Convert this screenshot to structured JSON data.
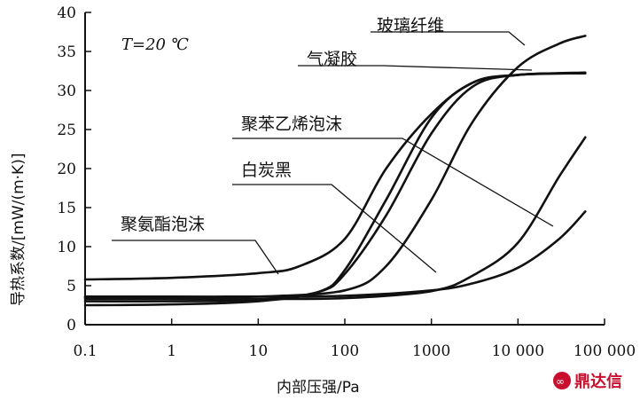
{
  "chart_data": {
    "type": "line",
    "xlabel": "内部压强/Pa",
    "ylabel": "导热系数/[mW/(m·K)]",
    "x_scale": "log",
    "xlim": [
      0.1,
      100000
    ],
    "ylim": [
      0,
      40
    ],
    "x_ticks": [
      0.1,
      1,
      10,
      100,
      1000,
      10000,
      100000
    ],
    "x_tick_labels": [
      "0.1",
      "1",
      "10",
      "100",
      "1000",
      "10 000",
      "100 000"
    ],
    "y_ticks": [
      0,
      5,
      10,
      15,
      20,
      25,
      30,
      35,
      40
    ],
    "y_tick_labels": [
      "0",
      "5",
      "10",
      "15",
      "20",
      "25",
      "30",
      "35",
      "40"
    ],
    "annotation": "T=20 ℃",
    "grid": false,
    "series": [
      {
        "name": "玻璃纤维",
        "x": [
          0.1,
          1,
          10,
          100,
          300,
          1000,
          3000,
          10000,
          30000,
          60000
        ],
        "y": [
          3.5,
          3.5,
          3.6,
          4.4,
          7.5,
          16,
          26,
          33,
          36,
          37
        ]
      },
      {
        "name": "气凝胶",
        "x": [
          0.1,
          1,
          10,
          50,
          100,
          300,
          1000,
          3000,
          10000,
          60000
        ],
        "y": [
          2.5,
          2.6,
          3.0,
          4.2,
          7.0,
          16,
          26.5,
          31,
          32,
          32.2
        ]
      },
      {
        "name": "聚苯乙烯泡沫",
        "x": [
          0.1,
          1,
          10,
          50,
          100,
          300,
          1000,
          3000,
          10000,
          60000
        ],
        "y": [
          3.0,
          3.0,
          3.2,
          4.2,
          6.5,
          14,
          24.5,
          30.5,
          32,
          32.2
        ]
      },
      {
        "name": "白炭黑",
        "x": [
          0.1,
          1,
          10,
          100,
          1000,
          3000,
          10000,
          30000,
          60000
        ],
        "y": [
          3.3,
          3.3,
          3.3,
          3.4,
          4.3,
          6.3,
          10.5,
          19,
          24
        ]
      },
      {
        "name": "聚氨酯泡沫",
        "x": [
          0.1,
          1,
          10,
          30,
          100,
          300,
          1000,
          3000,
          10000,
          60000
        ],
        "y": [
          5.8,
          6.0,
          6.6,
          7.5,
          11,
          20,
          27,
          31,
          32,
          32.3
        ]
      },
      {
        "name": "",
        "x": [
          0.1,
          1,
          10,
          100,
          1000,
          3000,
          10000,
          30000,
          60000
        ],
        "y": [
          3.6,
          3.6,
          3.6,
          3.7,
          4.4,
          5.3,
          7.3,
          11,
          14.5
        ]
      }
    ],
    "labels": [
      {
        "text": "玻璃纤维",
        "points_to": "玻璃纤维"
      },
      {
        "text": "气凝胶",
        "points_to": "气凝胶"
      },
      {
        "text": "聚苯乙烯泡沫",
        "points_to": "聚苯乙烯泡沫"
      },
      {
        "text": "白炭黑",
        "points_to": "白炭黑"
      },
      {
        "text": "聚氨酯泡沫",
        "points_to": "聚氨酯泡沫"
      }
    ],
    "watermark": "鼎达信"
  }
}
